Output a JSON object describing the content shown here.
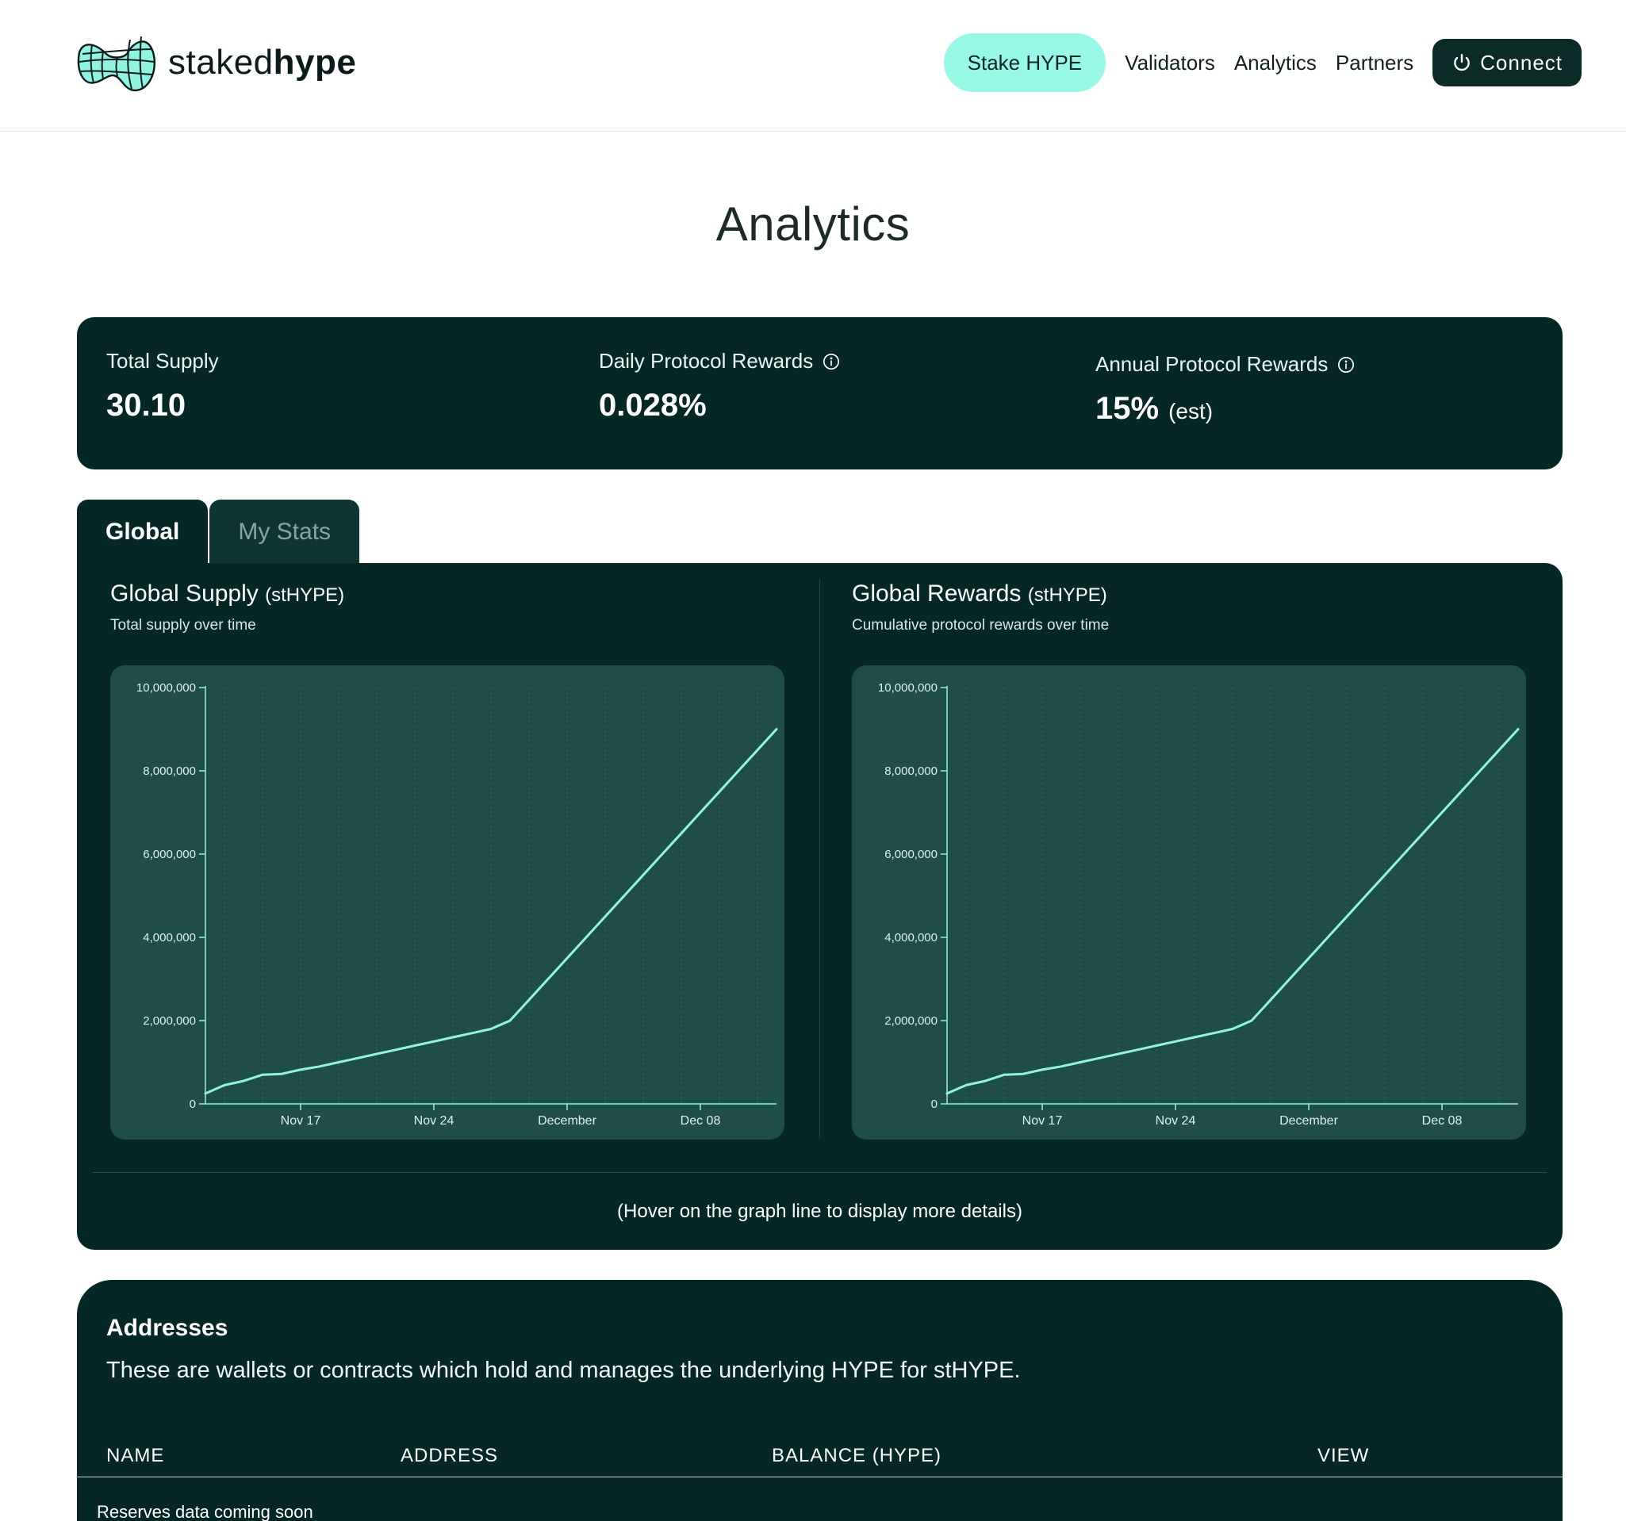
{
  "header": {
    "logo_light": "staked",
    "logo_bold": "hype",
    "nav": {
      "stake": "Stake HYPE",
      "validators": "Validators",
      "analytics": "Analytics",
      "partners": "Partners",
      "connect": "Connect"
    }
  },
  "page_title": "Analytics",
  "stats": {
    "total_supply_label": "Total Supply",
    "total_supply_value": "30.10",
    "daily_label": "Daily Protocol Rewards",
    "daily_value": "0.028%",
    "annual_label": "Annual Protocol Rewards",
    "annual_value": "15%",
    "annual_note": "(est)"
  },
  "tabs": {
    "global": "Global",
    "my_stats": "My Stats"
  },
  "charts_panel": {
    "supply_title": "Global Supply",
    "supply_unit": "(stHYPE)",
    "supply_sub": "Total supply over time",
    "rewards_title": "Global Rewards",
    "rewards_unit": "(stHYPE)",
    "rewards_sub": "Cumulative protocol rewards over time",
    "hover_note": "(Hover on the graph line to display more details)"
  },
  "chart_data": [
    {
      "type": "line",
      "title": "Global Supply (stHYPE)",
      "subtitle": "Total supply over time",
      "xlabel": "",
      "ylabel": "",
      "ylim": [
        0,
        10000000
      ],
      "yticks": [
        "0",
        "2,000,000",
        "4,000,000",
        "6,000,000",
        "8,000,000",
        "10,000,000"
      ],
      "xticks": [
        "Nov 17",
        "Nov 24",
        "December",
        "Dec 08"
      ],
      "grid": "vertical dashed",
      "x": [
        "2024-11-12",
        "2024-11-13",
        "2024-11-14",
        "2024-11-15",
        "2024-11-16",
        "2024-11-17",
        "2024-11-18",
        "2024-11-19",
        "2024-11-20",
        "2024-11-21",
        "2024-11-22",
        "2024-11-23",
        "2024-11-24",
        "2024-11-25",
        "2024-11-26",
        "2024-11-27",
        "2024-11-28",
        "2024-11-29",
        "2024-11-30",
        "2024-12-01",
        "2024-12-02",
        "2024-12-03",
        "2024-12-04",
        "2024-12-05",
        "2024-12-06",
        "2024-12-07",
        "2024-12-08",
        "2024-12-09",
        "2024-12-10",
        "2024-12-11",
        "2024-12-12"
      ],
      "values": [
        250000,
        450000,
        550000,
        700000,
        720000,
        820000,
        900000,
        1000000,
        1100000,
        1200000,
        1300000,
        1400000,
        1500000,
        1600000,
        1700000,
        1800000,
        2000000,
        2500000,
        3000000,
        3500000,
        4000000,
        4500000,
        5000000,
        5500000,
        6000000,
        6500000,
        7000000,
        7500000,
        8000000,
        8500000,
        9000000
      ]
    },
    {
      "type": "line",
      "title": "Global Rewards (stHYPE)",
      "subtitle": "Cumulative protocol rewards over time",
      "xlabel": "",
      "ylabel": "",
      "ylim": [
        0,
        10000000
      ],
      "yticks": [
        "0",
        "2,000,000",
        "4,000,000",
        "6,000,000",
        "8,000,000",
        "10,000,000"
      ],
      "xticks": [
        "Nov 17",
        "Nov 24",
        "December",
        "Dec 08"
      ],
      "grid": "vertical dashed",
      "x": [
        "2024-11-12",
        "2024-11-13",
        "2024-11-14",
        "2024-11-15",
        "2024-11-16",
        "2024-11-17",
        "2024-11-18",
        "2024-11-19",
        "2024-11-20",
        "2024-11-21",
        "2024-11-22",
        "2024-11-23",
        "2024-11-24",
        "2024-11-25",
        "2024-11-26",
        "2024-11-27",
        "2024-11-28",
        "2024-11-29",
        "2024-11-30",
        "2024-12-01",
        "2024-12-02",
        "2024-12-03",
        "2024-12-04",
        "2024-12-05",
        "2024-12-06",
        "2024-12-07",
        "2024-12-08",
        "2024-12-09",
        "2024-12-10",
        "2024-12-11",
        "2024-12-12"
      ],
      "values": [
        250000,
        450000,
        550000,
        700000,
        720000,
        820000,
        900000,
        1000000,
        1100000,
        1200000,
        1300000,
        1400000,
        1500000,
        1600000,
        1700000,
        1800000,
        2000000,
        2500000,
        3000000,
        3500000,
        4000000,
        4500000,
        5000000,
        5500000,
        6000000,
        6500000,
        7000000,
        7500000,
        8000000,
        8500000,
        9000000
      ]
    }
  ],
  "addresses": {
    "title": "Addresses",
    "description": "These are wallets or contracts which hold and manages the underlying HYPE for stHYPE.",
    "columns": [
      "NAME",
      "ADDRESS",
      "BALANCE (HYPE)",
      "VIEW"
    ],
    "empty": "Reserves data coming soon"
  },
  "colors": {
    "panel": "#052826",
    "chart_bg": "#1f4d48",
    "accent": "#97f9e5",
    "line": "#8ff5e0"
  },
  "icons": {
    "logo": "globe-mesh-logo",
    "connect": "power-icon",
    "info": "info-icon"
  }
}
